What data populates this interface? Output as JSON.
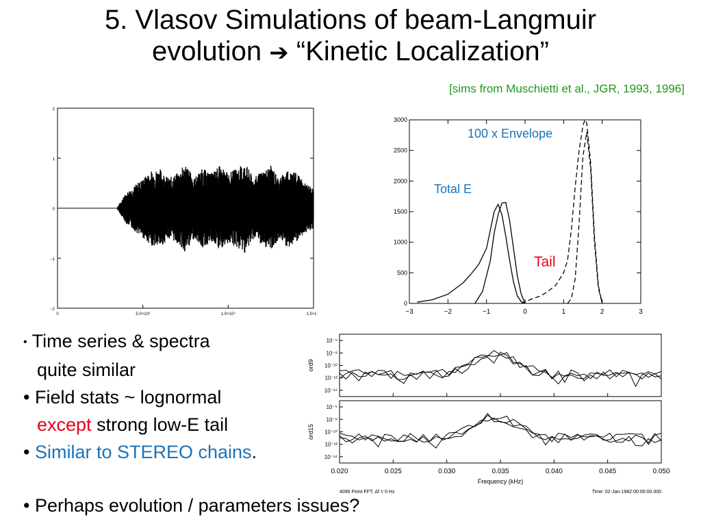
{
  "title": {
    "line1": "5. Vlasov Simulations of beam-Langmuir",
    "line2_pre": "evolution ",
    "arrow": "➔",
    "line2_post": " “Kinetic Localization”"
  },
  "citation": "[sims from Muschietti et al., JGR, 1993, 1996]",
  "bullets": {
    "b1_dot": "•",
    "b1_line1": " Time series & spectra",
    "b1_line2": "quite similar",
    "b2_line1": "• Field stats ~ lognormal",
    "b2_red": "except",
    "b2_rest": " strong low-E tail",
    "b3_dot": "• ",
    "b3_blue": "Similar to STEREO chains",
    "b3_end": ".",
    "b4": "• Perhaps evolution / parameters issues?"
  },
  "colors": {
    "citation": "#1a9a1a",
    "red": "#e3001b",
    "blue": "#1a73b8"
  },
  "chart_data": [
    {
      "type": "line",
      "xlim": [
        0,
        15000
      ],
      "ylim": [
        -2,
        2
      ],
      "x_ticks": [
        "0",
        "5.0×10³",
        "1.0×10⁴",
        "1.5×10⁴"
      ],
      "y_ticks": [
        "2",
        "1",
        "0",
        "−1",
        "−2"
      ],
      "envelope": {
        "x": [
          3500,
          4000,
          5000,
          5500,
          6000,
          6500,
          7000,
          7500,
          8000,
          8500,
          9000,
          9500,
          10000,
          10500,
          11000,
          11500,
          12000,
          12500,
          13000,
          13500,
          14000,
          14500,
          15000
        ],
        "y": [
          0.02,
          0.3,
          0.6,
          0.75,
          0.8,
          0.6,
          0.7,
          0.9,
          0.6,
          0.8,
          0.7,
          0.85,
          0.7,
          0.8,
          0.9,
          0.6,
          0.75,
          0.85,
          0.6,
          0.8,
          0.7,
          0.5,
          0.4
        ]
      }
    },
    {
      "type": "line",
      "xlim": [
        -3,
        3
      ],
      "ylim": [
        0,
        3000
      ],
      "x_ticks": [
        "−3",
        "−2",
        "−1",
        "0",
        "1",
        "2",
        "3"
      ],
      "y_ticks": [
        "0",
        "500",
        "1000",
        "1500",
        "2000",
        "2500",
        "3000"
      ],
      "annotations": {
        "envelope": "100 x Envelope",
        "total": "Total E",
        "tail": "Tail"
      },
      "series": [
        {
          "style": "solid",
          "x": [
            -2.8,
            -2.4,
            -2.0,
            -1.6,
            -1.4,
            -1.2,
            -1.0,
            -0.9,
            -0.8,
            -0.7,
            -0.6,
            -0.5,
            -0.4,
            -0.3,
            -0.2,
            -0.1,
            0.0
          ],
          "y": [
            20,
            60,
            150,
            340,
            480,
            640,
            900,
            1200,
            1500,
            1620,
            1450,
            1100,
            700,
            350,
            120,
            30,
            0
          ]
        },
        {
          "style": "solid",
          "x": [
            -1.3,
            -1.1,
            -0.9,
            -0.8,
            -0.7,
            -0.6,
            -0.5,
            -0.4,
            -0.3,
            -0.2,
            -0.1,
            0.0
          ],
          "y": [
            0,
            200,
            700,
            1150,
            1450,
            1640,
            1650,
            1350,
            900,
            450,
            150,
            0
          ]
        },
        {
          "style": "dashed",
          "x": [
            -0.1,
            0.2,
            0.4,
            0.6,
            0.8,
            1.0,
            1.1,
            1.2,
            1.3,
            1.4,
            1.5,
            1.55,
            1.6,
            1.7,
            1.8,
            1.9,
            2.0
          ],
          "y": [
            0,
            80,
            120,
            200,
            300,
            500,
            700,
            1200,
            1900,
            2500,
            2900,
            3000,
            2950,
            2300,
            1100,
            300,
            0
          ]
        },
        {
          "style": "dashed",
          "x": [
            1.1,
            1.2,
            1.3,
            1.4,
            1.5,
            1.6,
            1.7,
            1.8,
            1.9,
            2.0
          ],
          "y": [
            0,
            80,
            400,
            1300,
            2400,
            2800,
            2200,
            1000,
            250,
            0
          ]
        }
      ]
    },
    {
      "type": "line",
      "xlim": [
        0.02,
        0.05
      ],
      "x_ticks": [
        "0.020",
        "0.025",
        "0.030",
        "0.035",
        "0.040",
        "0.045",
        "0.050"
      ],
      "xlabel": "Frequency (kHz)",
      "footer_left": "4096 Point FFT; Δf = 0 Hz",
      "footer_right": "Time: 02-Jan-1982:00:00:00.000",
      "panels": [
        {
          "ylabel": "ord9",
          "y_ticks": [
            "10⁻⁶",
            "10⁻⁸",
            "10⁻¹⁰",
            "10⁻¹²",
            "10⁻¹⁴"
          ],
          "peak_log": -8.2,
          "base_log": -11.5
        },
        {
          "ylabel": "ord15",
          "y_ticks": [
            "10⁻⁶",
            "10⁻⁸",
            "10⁻¹⁰",
            "10⁻¹²",
            "10⁻¹⁴"
          ],
          "peak_log": -7.6,
          "base_log": -11.0
        }
      ]
    }
  ]
}
